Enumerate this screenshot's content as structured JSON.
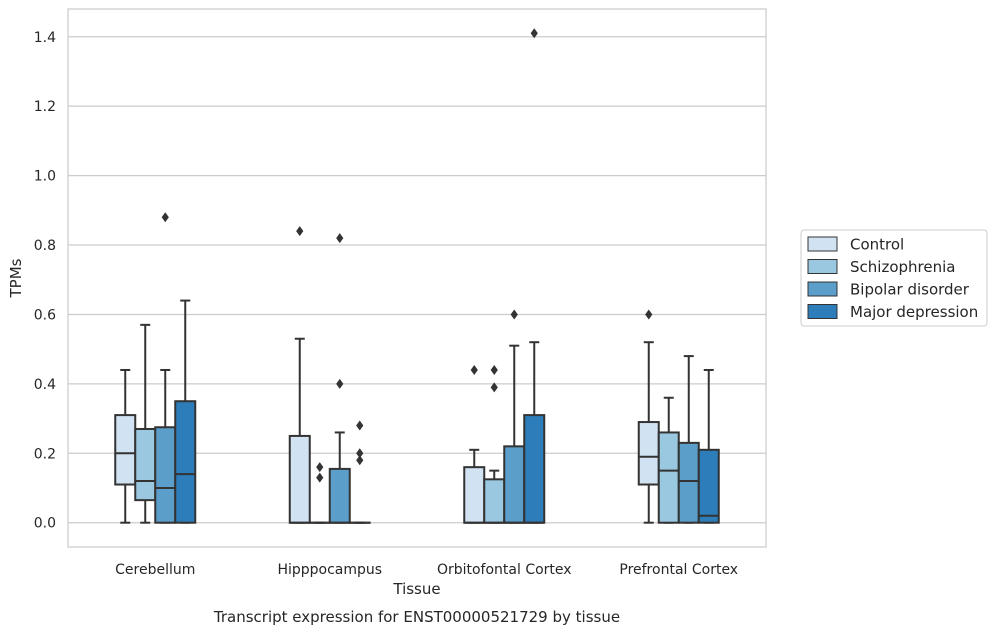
{
  "chart_data": {
    "type": "box",
    "caption": "Transcript expression for ENST00000521729 by tissue",
    "xlabel": "Tissue",
    "ylabel": "TPMs",
    "ylim": [
      -0.07,
      1.48
    ],
    "yticks": [
      "0.0",
      "0.2",
      "0.4",
      "0.6",
      "0.8",
      "1.0",
      "1.2",
      "1.4"
    ],
    "grid": "horizontal",
    "legend_position": "right",
    "categories": [
      "Cerebellum",
      "Hipppocampus",
      "Orbitofontal Cortex",
      "Prefrontal Cortex"
    ],
    "series": [
      {
        "name": "Control",
        "color": "#d1e2f2",
        "boxes": [
          {
            "q1": 0.11,
            "median": 0.2,
            "q3": 0.31,
            "whisker_low": 0.0,
            "whisker_high": 0.44,
            "outliers": []
          },
          {
            "q1": 0.0,
            "median": 0.0,
            "q3": 0.25,
            "whisker_low": 0.0,
            "whisker_high": 0.53,
            "outliers": [
              0.84
            ]
          },
          {
            "q1": 0.0,
            "median": 0.0,
            "q3": 0.16,
            "whisker_low": 0.0,
            "whisker_high": 0.21,
            "outliers": [
              0.44
            ]
          },
          {
            "q1": 0.11,
            "median": 0.19,
            "q3": 0.29,
            "whisker_low": 0.0,
            "whisker_high": 0.52,
            "outliers": [
              0.6
            ]
          }
        ]
      },
      {
        "name": "Schizophrenia",
        "color": "#9ac8e0",
        "boxes": [
          {
            "q1": 0.065,
            "median": 0.12,
            "q3": 0.27,
            "whisker_low": 0.0,
            "whisker_high": 0.57,
            "outliers": []
          },
          {
            "q1": 0.0,
            "median": 0.0,
            "q3": 0.0,
            "whisker_low": 0.0,
            "whisker_high": 0.0,
            "outliers": [
              0.13,
              0.16
            ]
          },
          {
            "q1": 0.0,
            "median": 0.0,
            "q3": 0.125,
            "whisker_low": 0.0,
            "whisker_high": 0.15,
            "outliers": [
              0.39,
              0.44
            ]
          },
          {
            "q1": 0.0,
            "median": 0.15,
            "q3": 0.26,
            "whisker_low": 0.0,
            "whisker_high": 0.36,
            "outliers": []
          }
        ]
      },
      {
        "name": "Bipolar disorder",
        "color": "#5b9ec9",
        "boxes": [
          {
            "q1": 0.0,
            "median": 0.1,
            "q3": 0.275,
            "whisker_low": 0.0,
            "whisker_high": 0.44,
            "outliers": [
              0.88
            ]
          },
          {
            "q1": 0.0,
            "median": 0.0,
            "q3": 0.155,
            "whisker_low": 0.0,
            "whisker_high": 0.26,
            "outliers": [
              0.4,
              0.82
            ]
          },
          {
            "q1": 0.0,
            "median": 0.0,
            "q3": 0.22,
            "whisker_low": 0.0,
            "whisker_high": 0.51,
            "outliers": [
              0.6
            ]
          },
          {
            "q1": 0.0,
            "median": 0.12,
            "q3": 0.23,
            "whisker_low": 0.0,
            "whisker_high": 0.48,
            "outliers": []
          }
        ]
      },
      {
        "name": "Major depression",
        "color": "#2d7dbb",
        "boxes": [
          {
            "q1": 0.0,
            "median": 0.14,
            "q3": 0.35,
            "whisker_low": 0.0,
            "whisker_high": 0.64,
            "outliers": []
          },
          {
            "q1": 0.0,
            "median": 0.0,
            "q3": 0.0,
            "whisker_low": 0.0,
            "whisker_high": 0.0,
            "outliers": [
              0.18,
              0.2,
              0.28
            ]
          },
          {
            "q1": 0.0,
            "median": 0.0,
            "q3": 0.31,
            "whisker_low": 0.0,
            "whisker_high": 0.52,
            "outliers": [
              1.41
            ]
          },
          {
            "q1": 0.0,
            "median": 0.02,
            "q3": 0.21,
            "whisker_low": 0.0,
            "whisker_high": 0.44,
            "outliers": []
          }
        ]
      }
    ]
  }
}
